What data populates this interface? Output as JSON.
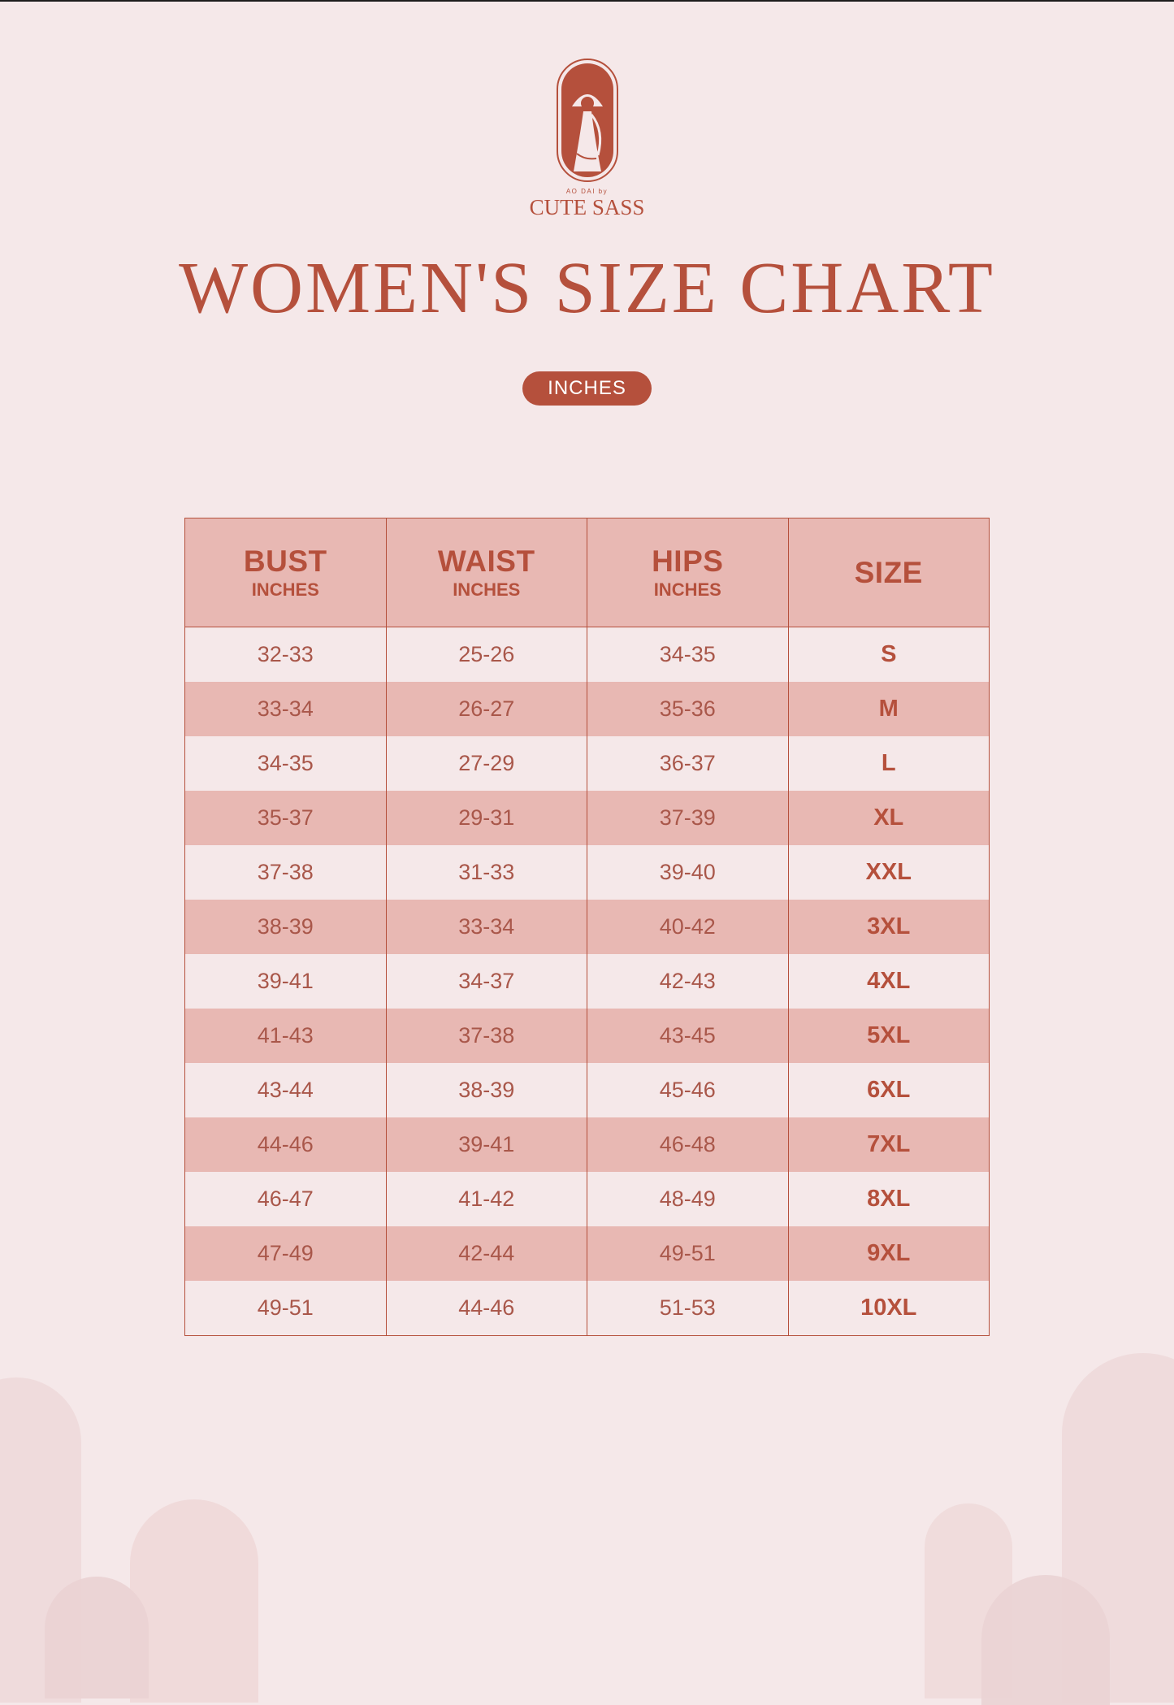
{
  "brand": {
    "tagline": "AO DAI by",
    "name": "CUTE SASS"
  },
  "title": "WOMEN'S SIZE CHART",
  "unit_label": "INCHES",
  "table": {
    "headers": [
      {
        "main": "BUST",
        "sub": "INCHES"
      },
      {
        "main": "WAIST",
        "sub": "INCHES"
      },
      {
        "main": "HIPS",
        "sub": "INCHES"
      },
      {
        "main": "SIZE",
        "sub": ""
      }
    ],
    "rows": [
      [
        "32-33",
        "25-26",
        "34-35",
        "S"
      ],
      [
        "33-34",
        "26-27",
        "35-36",
        "M"
      ],
      [
        "34-35",
        "27-29",
        "36-37",
        "L"
      ],
      [
        "35-37",
        "29-31",
        "37-39",
        "XL"
      ],
      [
        "37-38",
        "31-33",
        "39-40",
        "XXL"
      ],
      [
        "38-39",
        "33-34",
        "40-42",
        "3XL"
      ],
      [
        "39-41",
        "34-37",
        "42-43",
        "4XL"
      ],
      [
        "41-43",
        "37-38",
        "43-45",
        "5XL"
      ],
      [
        "43-44",
        "38-39",
        "45-46",
        "6XL"
      ],
      [
        "44-46",
        "39-41",
        "46-48",
        "7XL"
      ],
      [
        "46-47",
        "41-42",
        "48-49",
        "8XL"
      ],
      [
        "47-49",
        "42-44",
        "49-51",
        "9XL"
      ],
      [
        "49-51",
        "44-46",
        "51-53",
        "10XL"
      ]
    ]
  },
  "colors": {
    "accent": "#b5503c",
    "background": "#f5e8e9",
    "row_alt": "#e8b8b3"
  },
  "icons": {
    "logo": "woman-in-ao-dai-logo"
  }
}
